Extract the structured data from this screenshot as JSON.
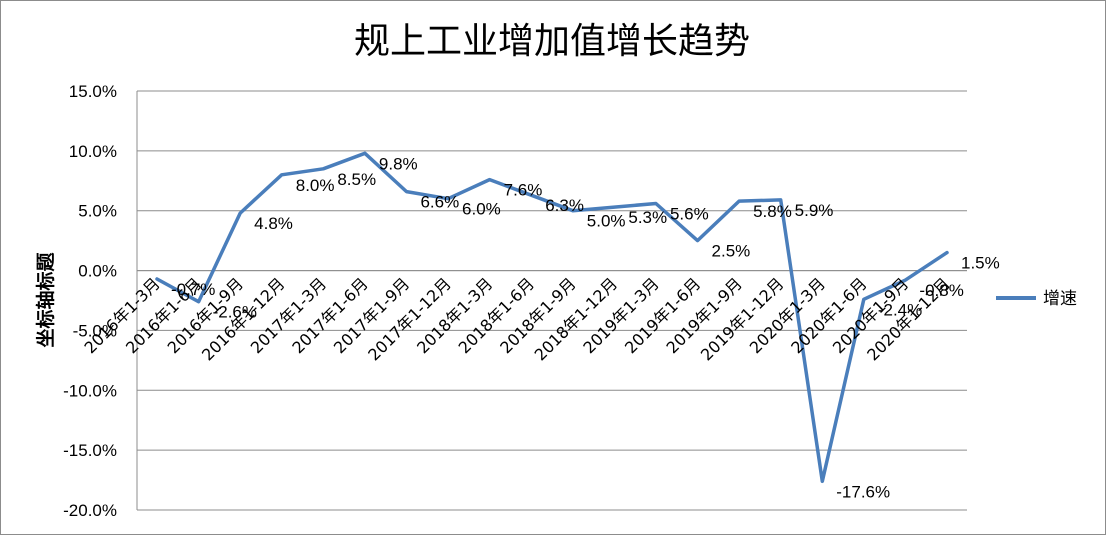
{
  "chart_data": {
    "type": "line",
    "title": "规上工业增加值增长趋势",
    "ylabel": "坐标轴标题",
    "xlabel": "",
    "ylim": [
      -20,
      15
    ],
    "yticks": [
      15,
      10,
      5,
      0,
      -5,
      -10,
      -15,
      -20
    ],
    "ytick_labels": [
      "15.0%",
      "10.0%",
      "5.0%",
      "0.0%",
      "-5.0%",
      "-10.0%",
      "-15.0%",
      "-20.0%"
    ],
    "grid": true,
    "legend_position": "right",
    "color": "#4a7ebb",
    "categories": [
      "2016年1-3月",
      "2016年1-6月",
      "2016年1-9月",
      "2016年1-12月",
      "2017年1-3月",
      "2017年1-6月",
      "2017年1-9月",
      "2017年1-12月",
      "2018年1-3月",
      "2018年1-6月",
      "2018年1-9月",
      "2018年1-12月",
      "2019年1-3月",
      "2019年1-6月",
      "2019年1-9月",
      "2019年1-12月",
      "2020年1-3月",
      "2020年1-6月",
      "2020年1-9月",
      "2020年1-12月"
    ],
    "series": [
      {
        "name": "增速",
        "values": [
          -0.7,
          -2.6,
          4.8,
          8.0,
          8.5,
          9.8,
          6.6,
          6.0,
          7.6,
          6.3,
          5.0,
          5.3,
          5.6,
          2.5,
          5.8,
          5.9,
          -17.6,
          -2.4,
          -0.8,
          1.5
        ],
        "labels": [
          "-0.7%",
          "-2.6%",
          "4.8%",
          "8.0%",
          "8.5%",
          "9.8%",
          "6.6%",
          "6.0%",
          "7.6%",
          "6.3%",
          "5.0%",
          "5.3%",
          "5.6%",
          "2.5%",
          "5.8%",
          "5.9%",
          "-17.6%",
          "-2.4%",
          "-0.8%",
          "1.5%"
        ]
      }
    ]
  }
}
